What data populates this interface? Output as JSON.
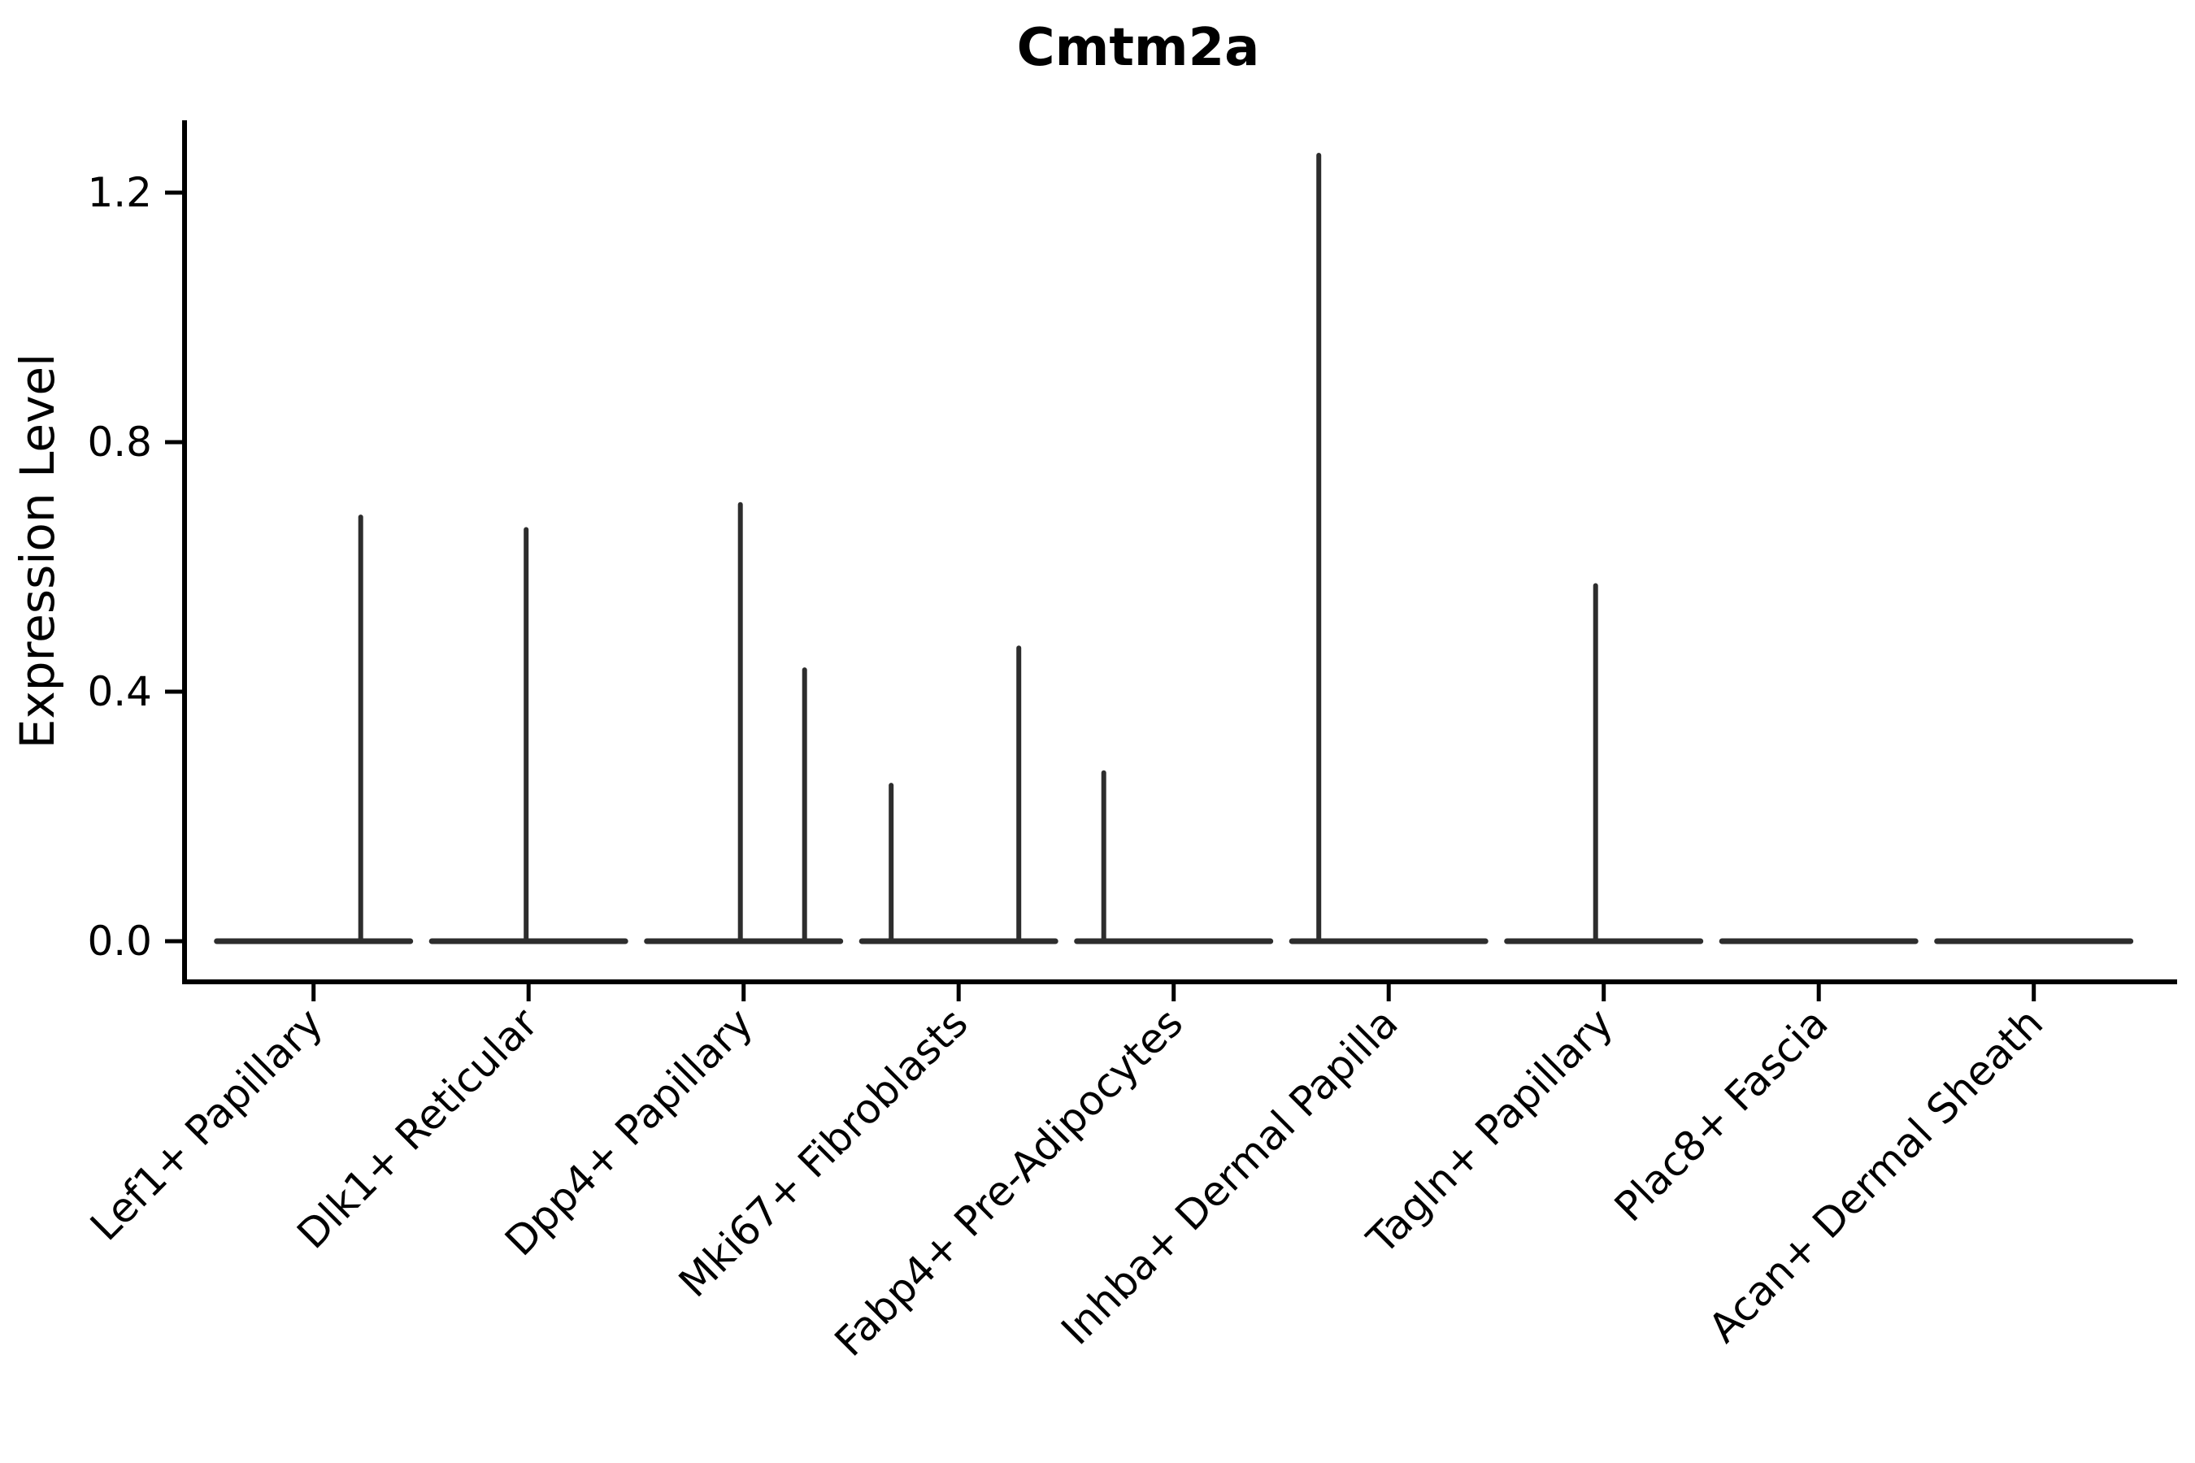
{
  "title": "Cmtm2a",
  "colors": {
    "background": "#ffffff",
    "axis": "#000000",
    "violin": "#2d2d2d",
    "text": "#000000"
  },
  "chart_data": {
    "type": "violin",
    "title": "Cmtm2a",
    "xlabel": "",
    "ylabel": "Expression Level",
    "ylim": [
      0,
      1.3
    ],
    "yticks": [
      0.0,
      0.4,
      0.8,
      1.2
    ],
    "ytick_labels": [
      "0.0",
      "0.4",
      "0.8",
      "1.2"
    ],
    "x_tick_labels_rotation": 45,
    "grid": false,
    "legend_position": "none",
    "categories": [
      "Lef1+ Papillary",
      "Dlk1+ Reticular",
      "Dpp4+ Papillary",
      "Mki67+ Fibroblasts",
      "Fabp4+ Pre-Adipocytes",
      "Inhba+ Dermal Papilla",
      "Tagln+ Papillary",
      "Plac8+ Fascia",
      "Acan+ Dermal Sheath"
    ],
    "series": [
      {
        "category": "Lef1+ Papillary",
        "baseline_value": 0.0,
        "spikes": [
          {
            "value": 0.68,
            "dx": 58
          }
        ]
      },
      {
        "category": "Dlk1+ Reticular",
        "baseline_value": 0.0,
        "spikes": [
          {
            "value": 0.66,
            "dx": -3
          }
        ]
      },
      {
        "category": "Dpp4+ Papillary",
        "baseline_value": 0.0,
        "spikes": [
          {
            "value": 0.7,
            "dx": -4
          },
          {
            "value": 0.435,
            "dx": 75
          }
        ]
      },
      {
        "category": "Mki67+ Fibroblasts",
        "baseline_value": 0.0,
        "spikes": [
          {
            "value": 0.25,
            "dx": -83
          },
          {
            "value": 0.47,
            "dx": 74
          }
        ]
      },
      {
        "category": "Fabp4+ Pre-Adipocytes",
        "baseline_value": 0.0,
        "spikes": [
          {
            "value": 0.27,
            "dx": -86
          }
        ]
      },
      {
        "category": "Inhba+ Dermal Papilla",
        "baseline_value": 0.0,
        "spikes": [
          {
            "value": 1.26,
            "dx": -86
          }
        ]
      },
      {
        "category": "Tagln+ Papillary",
        "baseline_value": 0.0,
        "spikes": [
          {
            "value": 0.57,
            "dx": -10
          }
        ]
      },
      {
        "category": "Plac8+ Fascia",
        "baseline_value": 0.0,
        "spikes": []
      },
      {
        "category": "Acan+ Dermal Sheath",
        "baseline_value": 0.0,
        "spikes": []
      }
    ]
  }
}
